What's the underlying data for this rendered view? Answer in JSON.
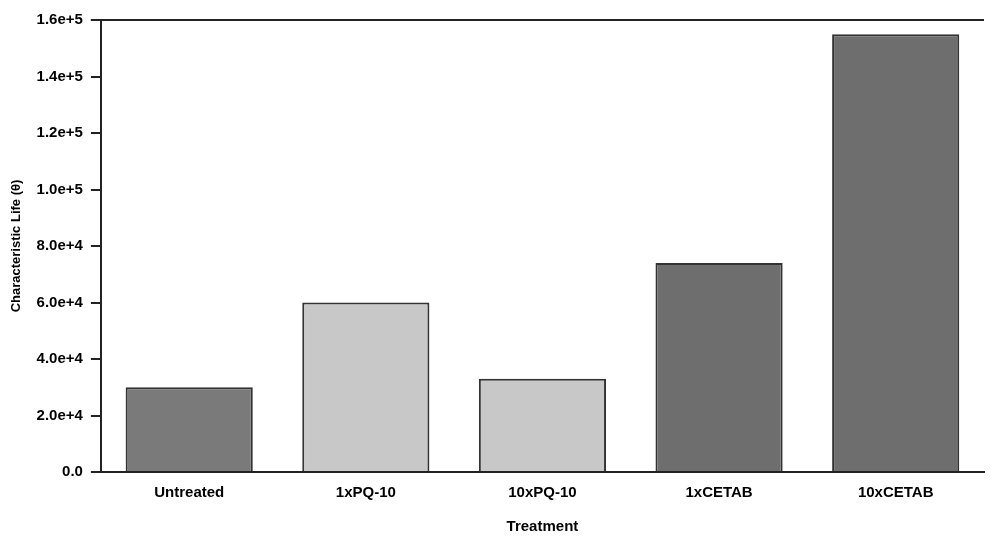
{
  "chart_data": {
    "type": "bar",
    "xlabel": "Treatment",
    "ylabel": "Characteristic Life (θ)",
    "categories": [
      "Untreated",
      "1xPQ-10",
      "10xPQ-10",
      "1xCETAB",
      "10xCETAB"
    ],
    "values": [
      30000,
      60000,
      33000,
      74000,
      155000
    ],
    "colors": [
      "#7a7a7a",
      "#c8c8c8",
      "#c8c8c8",
      "#6e6e6e",
      "#6e6e6e"
    ],
    "ylim": [
      0,
      160000
    ],
    "yticks": [
      {
        "value": 0,
        "label": "0.0"
      },
      {
        "value": 20000,
        "label": "2.0e+4"
      },
      {
        "value": 40000,
        "label": "4.0e+4"
      },
      {
        "value": 60000,
        "label": "6.0e+4"
      },
      {
        "value": 80000,
        "label": "8.0e+4"
      },
      {
        "value": 100000,
        "label": "1.0e+5"
      },
      {
        "value": 120000,
        "label": "1.2e+5"
      },
      {
        "value": 140000,
        "label": "1.4e+5"
      },
      {
        "value": 160000,
        "label": "1.6e+5"
      }
    ],
    "grid": false,
    "legend": false
  }
}
